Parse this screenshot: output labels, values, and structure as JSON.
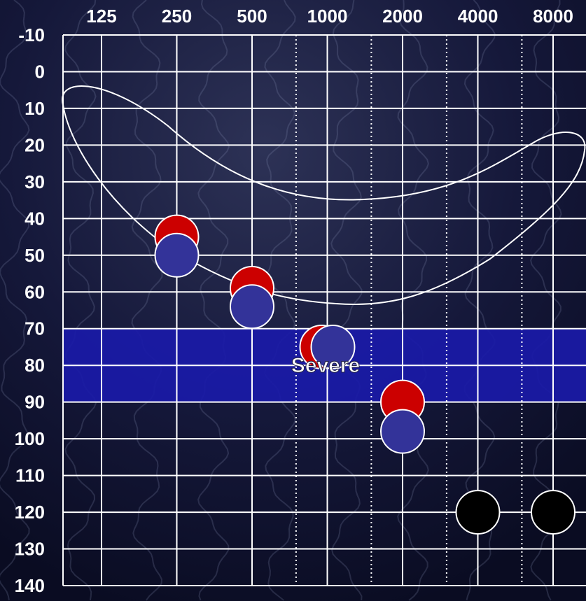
{
  "chart_data": {
    "type": "scatter",
    "title": "",
    "xlabel": "",
    "ylabel": "",
    "x_scale": "log2",
    "x_ticks": [
      "125",
      "250",
      "500",
      "1000",
      "2000",
      "4000",
      "8000"
    ],
    "y_ticks": [
      "-10",
      "0",
      "10",
      "20",
      "30",
      "40",
      "50",
      "60",
      "70",
      "80",
      "90",
      "100",
      "110",
      "120",
      "130",
      "140"
    ],
    "ylim": [
      -10,
      140
    ],
    "y_inverted": true,
    "grid": true,
    "band": {
      "label": "Severe",
      "from": 70,
      "to": 90,
      "color": "#1a1aa8"
    },
    "series": [
      {
        "color": "#cc0000",
        "points": [
          {
            "x": 250,
            "y": 45
          },
          {
            "x": 500,
            "y": 59
          },
          {
            "x": 1000,
            "y": 75
          },
          {
            "x": 2000,
            "y": 90
          }
        ]
      },
      {
        "color": "#333399",
        "points": [
          {
            "x": 250,
            "y": 50
          },
          {
            "x": 500,
            "y": 64
          },
          {
            "x": 1000,
            "y": 75
          },
          {
            "x": 2000,
            "y": 98
          }
        ]
      },
      {
        "color": "#000000",
        "points": [
          {
            "x": 4000,
            "y": 120
          },
          {
            "x": 8000,
            "y": 120
          }
        ]
      }
    ]
  }
}
